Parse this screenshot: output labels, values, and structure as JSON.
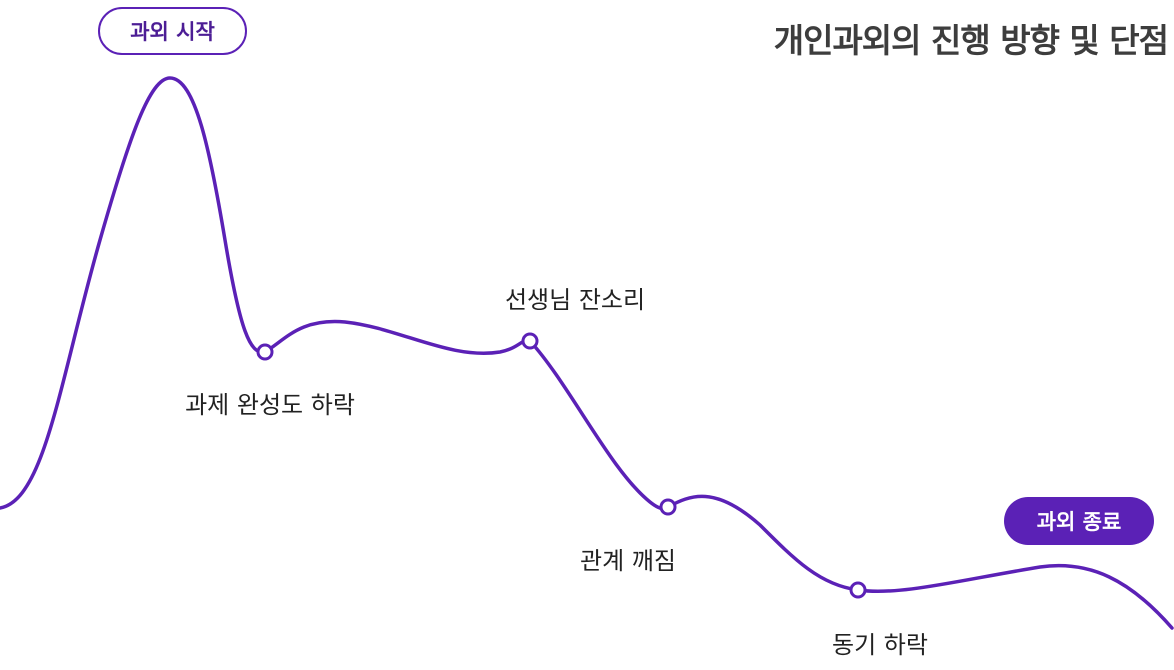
{
  "title": "개인과외의 진행 방향 및 단점",
  "start_badge": "과외 시작",
  "end_badge": "과외 종료",
  "milestones": [
    {
      "label": "과제 완성도 하락"
    },
    {
      "label": "선생님 잔소리"
    },
    {
      "label": "관계 깨짐"
    },
    {
      "label": "동기 하락"
    }
  ],
  "colors": {
    "accent": "#5b21b6",
    "title_text": "#3d3d3d",
    "label_text": "#222222",
    "background": "#ffffff"
  }
}
